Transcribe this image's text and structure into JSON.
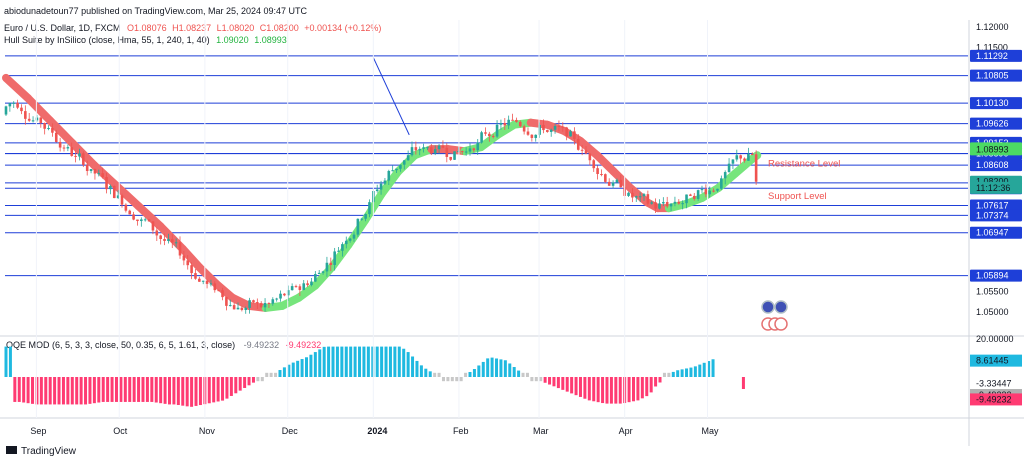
{
  "header": {
    "publish_line": "abiodunadetoun77 published on TradingView.com, Mar 25, 2024 09:47 UTC",
    "symbol_line": "Euro / U.S. Dollar, 1D, FXCM",
    "ohlc": {
      "o": "O1.08076",
      "h": "H1.08237",
      "l": "L1.08020",
      "c": "C1.08200",
      "change": "+0.00134 (+0.12%)"
    },
    "indicator_name": "Hull Suite by InSilico (close, Hma, 55, 1, 240, 1, 40)",
    "indicator_values": [
      "1.09020",
      "1.08993"
    ]
  },
  "chart_data": [
    {
      "type": "candlestick",
      "title": "Euro / U.S. Dollar, 1D, FXCM",
      "ylim": [
        1.045,
        1.125
      ],
      "y_ticks": [
        "1.12000",
        "1.11500",
        "1.11000",
        "1.10500",
        "1.10000",
        "1.09500",
        "1.09000",
        "1.08500",
        "1.08000",
        "1.07500",
        "1.07000",
        "1.06500",
        "1.06000",
        "1.05500",
        "1.05000"
      ],
      "visible_y_ticks": [
        "1.12000",
        "1.11500",
        "1.05500",
        "1.05000"
      ],
      "x_labels": [
        "Sep",
        "Oct",
        "Nov",
        "Dec",
        "2024",
        "Feb",
        "Mar",
        "Apr",
        "May"
      ],
      "horizontal_levels": [
        {
          "label": "1.11292",
          "value": 1.11292
        },
        {
          "label": "1.10805",
          "value": 1.10805
        },
        {
          "label": "1.10130",
          "value": 1.1013
        },
        {
          "label": "1.09626",
          "value": 1.09626
        },
        {
          "label": "1.09153",
          "value": 1.09153
        },
        {
          "label": "1.08893",
          "value": 1.08893
        },
        {
          "label": "1.08890",
          "value": 1.0889
        },
        {
          "label": "1.08608",
          "value": 1.08608
        },
        {
          "label": "1.08171",
          "value": 1.08171
        },
        {
          "label": "1.08038",
          "value": 1.08038
        },
        {
          "label": "1.07617",
          "value": 1.07617
        },
        {
          "label": "1.07374",
          "value": 1.07374
        },
        {
          "label": "1.06947",
          "value": 1.06947
        },
        {
          "label": "1.05894",
          "value": 1.05894
        }
      ],
      "price_badges": [
        {
          "label": "1.09020",
          "value": 1.0902,
          "color": "#4cd964"
        },
        {
          "label": "1.08993",
          "value": 1.08993,
          "color": "#4cd964"
        },
        {
          "label": "1.08200",
          "value": 1.082,
          "color": "#26a69a"
        },
        {
          "label": "11:12:36",
          "value": 1.0805,
          "color": "#26a69a"
        }
      ],
      "annotations": [
        {
          "text": "Resistance Level",
          "value": 1.0865
        },
        {
          "text": "Support Level",
          "value": 1.0785
        }
      ],
      "trendline": {
        "from": [
          "2024-01-01",
          1.1125
        ],
        "to": [
          "2024-01-14",
          1.0935
        ]
      },
      "hull_series": [
        {
          "x": 0,
          "y": 1.1075
        },
        {
          "x": 8,
          "y": 1.1025
        },
        {
          "x": 16,
          "y": 1.097
        },
        {
          "x": 24,
          "y": 1.0915
        },
        {
          "x": 32,
          "y": 1.086
        },
        {
          "x": 40,
          "y": 1.081
        },
        {
          "x": 48,
          "y": 1.076
        },
        {
          "x": 56,
          "y": 1.071
        },
        {
          "x": 64,
          "y": 1.0655
        },
        {
          "x": 70,
          "y": 1.061
        },
        {
          "x": 76,
          "y": 1.057
        },
        {
          "x": 82,
          "y": 1.0535
        },
        {
          "x": 88,
          "y": 1.0515
        },
        {
          "x": 94,
          "y": 1.051
        },
        {
          "x": 100,
          "y": 1.0515
        },
        {
          "x": 106,
          "y": 1.0535
        },
        {
          "x": 112,
          "y": 1.0565
        },
        {
          "x": 118,
          "y": 1.061
        },
        {
          "x": 124,
          "y": 1.0665
        },
        {
          "x": 130,
          "y": 1.0725
        },
        {
          "x": 136,
          "y": 1.079
        },
        {
          "x": 142,
          "y": 1.0845
        },
        {
          "x": 148,
          "y": 1.0885
        },
        {
          "x": 154,
          "y": 1.09
        },
        {
          "x": 160,
          "y": 1.09
        },
        {
          "x": 166,
          "y": 1.0895
        },
        {
          "x": 172,
          "y": 1.0905
        },
        {
          "x": 178,
          "y": 1.0935
        },
        {
          "x": 184,
          "y": 1.096
        },
        {
          "x": 190,
          "y": 1.0965
        },
        {
          "x": 196,
          "y": 1.096
        },
        {
          "x": 202,
          "y": 1.0945
        },
        {
          "x": 208,
          "y": 1.092
        },
        {
          "x": 214,
          "y": 1.0885
        },
        {
          "x": 220,
          "y": 1.0845
        },
        {
          "x": 226,
          "y": 1.0805
        },
        {
          "x": 232,
          "y": 1.077
        },
        {
          "x": 236,
          "y": 1.0755
        },
        {
          "x": 240,
          "y": 1.0755
        },
        {
          "x": 246,
          "y": 1.0765
        },
        {
          "x": 252,
          "y": 1.078
        },
        {
          "x": 258,
          "y": 1.0805
        },
        {
          "x": 264,
          "y": 1.084
        },
        {
          "x": 270,
          "y": 1.0875
        },
        {
          "x": 272,
          "y": 1.0885
        }
      ],
      "candles_days": 273,
      "last_close": 1.082
    },
    {
      "type": "bar",
      "title": "QQE MOD (6, 5, 3, 3, close, 50, 0.35, 6, 5, 1.61, 3, close)",
      "legend_values": [
        "-9.49232",
        "-9.49232"
      ],
      "ylim": [
        -35,
        25
      ],
      "y_ticks": [
        "20.00000"
      ],
      "badges": [
        {
          "label": "8.61445",
          "value": 8.61445,
          "color": "#1fb9e0"
        },
        {
          "label": "-3.33447",
          "value": -3.33447,
          "color": "none"
        },
        {
          "label": "-9.49232",
          "value": -9.49232,
          "color": "#b0b0b0"
        },
        {
          "label": "-9.49232",
          "value": -11.8,
          "color": "#ff3b72"
        }
      ]
    }
  ],
  "footer": {
    "brand": "TradingView"
  }
}
